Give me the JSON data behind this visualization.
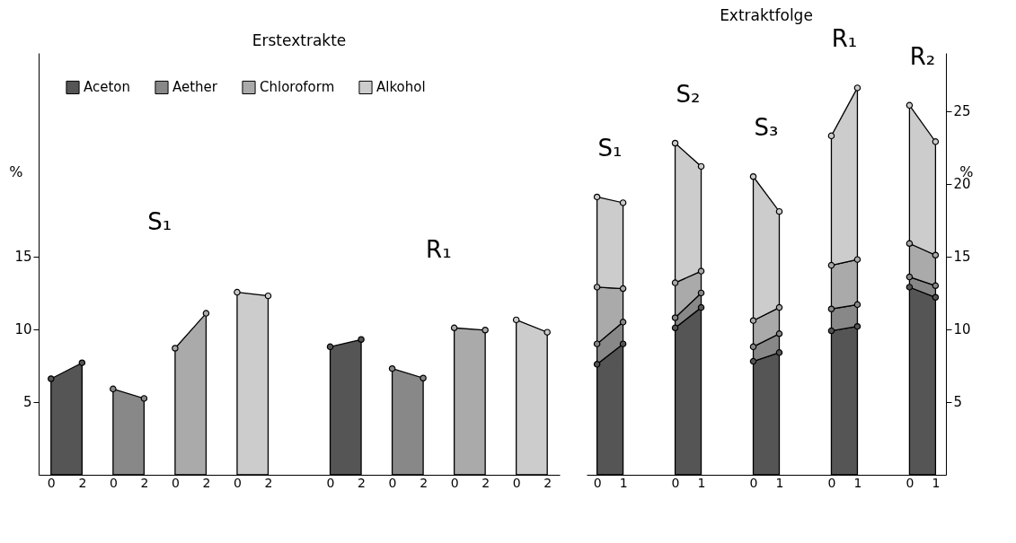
{
  "chart_data": [
    {
      "type": "area",
      "title": "Erstextrakte",
      "ylabel": "%",
      "legend": "top left",
      "marker": "circle",
      "ylim": [
        0,
        29
      ],
      "yticks": [
        5,
        10,
        15
      ],
      "categories": [
        "0",
        "2",
        "0",
        "2",
        "0",
        "2",
        "0",
        "2",
        null,
        "0",
        "2",
        "0",
        "2",
        "0",
        "2",
        "0",
        "2"
      ],
      "series": [
        {
          "name": "Aceton",
          "color": "#555555",
          "values": [
            6.6,
            7.7,
            null,
            null,
            null,
            null,
            null,
            null,
            null,
            8.8,
            9.3,
            null,
            null,
            null,
            null,
            null,
            null
          ]
        },
        {
          "name": "Aether",
          "color": "#888888",
          "values": [
            null,
            null,
            5.9,
            5.25,
            null,
            null,
            null,
            null,
            null,
            null,
            null,
            7.3,
            6.65,
            null,
            null,
            null,
            null
          ]
        },
        {
          "name": "Chloroform",
          "color": "#aaaaaa",
          "values": [
            null,
            null,
            null,
            null,
            8.7,
            11.1,
            null,
            null,
            null,
            null,
            null,
            null,
            null,
            10.1,
            9.95,
            null,
            null
          ]
        },
        {
          "name": "Alkohol",
          "color": "#cccccc",
          "values": [
            null,
            null,
            null,
            null,
            null,
            null,
            12.55,
            12.3,
            null,
            null,
            null,
            null,
            null,
            null,
            null,
            10.65,
            9.8
          ]
        }
      ],
      "annotations": [
        "S₁",
        "R₁"
      ]
    },
    {
      "type": "area",
      "title": "Extraktfolge",
      "y2label": "%",
      "stacked": true,
      "marker": "circle",
      "y2lim": [
        0,
        29
      ],
      "y2ticks": [
        5,
        10,
        15,
        20,
        25
      ],
      "categories": [
        "0",
        "1",
        null,
        "0",
        "1",
        null,
        "0",
        "1",
        null,
        "0",
        "1",
        null,
        "0",
        "1"
      ],
      "series": [
        {
          "color": "#555555",
          "axis": "y2",
          "values": [
            7.6,
            9.0,
            null,
            10.1,
            11.5,
            null,
            7.8,
            8.4,
            null,
            9.9,
            10.2,
            null,
            12.9,
            12.2
          ]
        },
        {
          "color": "#888888",
          "axis": "y2",
          "values": [
            1.4,
            1.5,
            null,
            0.7,
            1.0,
            null,
            1.0,
            1.3,
            null,
            1.5,
            1.5,
            null,
            0.7,
            0.8
          ]
        },
        {
          "color": "#aaaaaa",
          "axis": "y2",
          "values": [
            3.9,
            2.3,
            null,
            2.4,
            1.5,
            null,
            1.8,
            1.8,
            null,
            3.0,
            3.1,
            null,
            2.3,
            2.1
          ]
        },
        {
          "color": "#cccccc",
          "axis": "y2",
          "values": [
            6.2,
            5.9,
            null,
            9.6,
            7.2,
            null,
            9.9,
            6.6,
            null,
            8.9,
            11.8,
            null,
            9.5,
            7.8
          ]
        }
      ],
      "annotations": [
        "S₁",
        "S₂",
        "S₃",
        "R₁",
        "R₂"
      ]
    }
  ]
}
